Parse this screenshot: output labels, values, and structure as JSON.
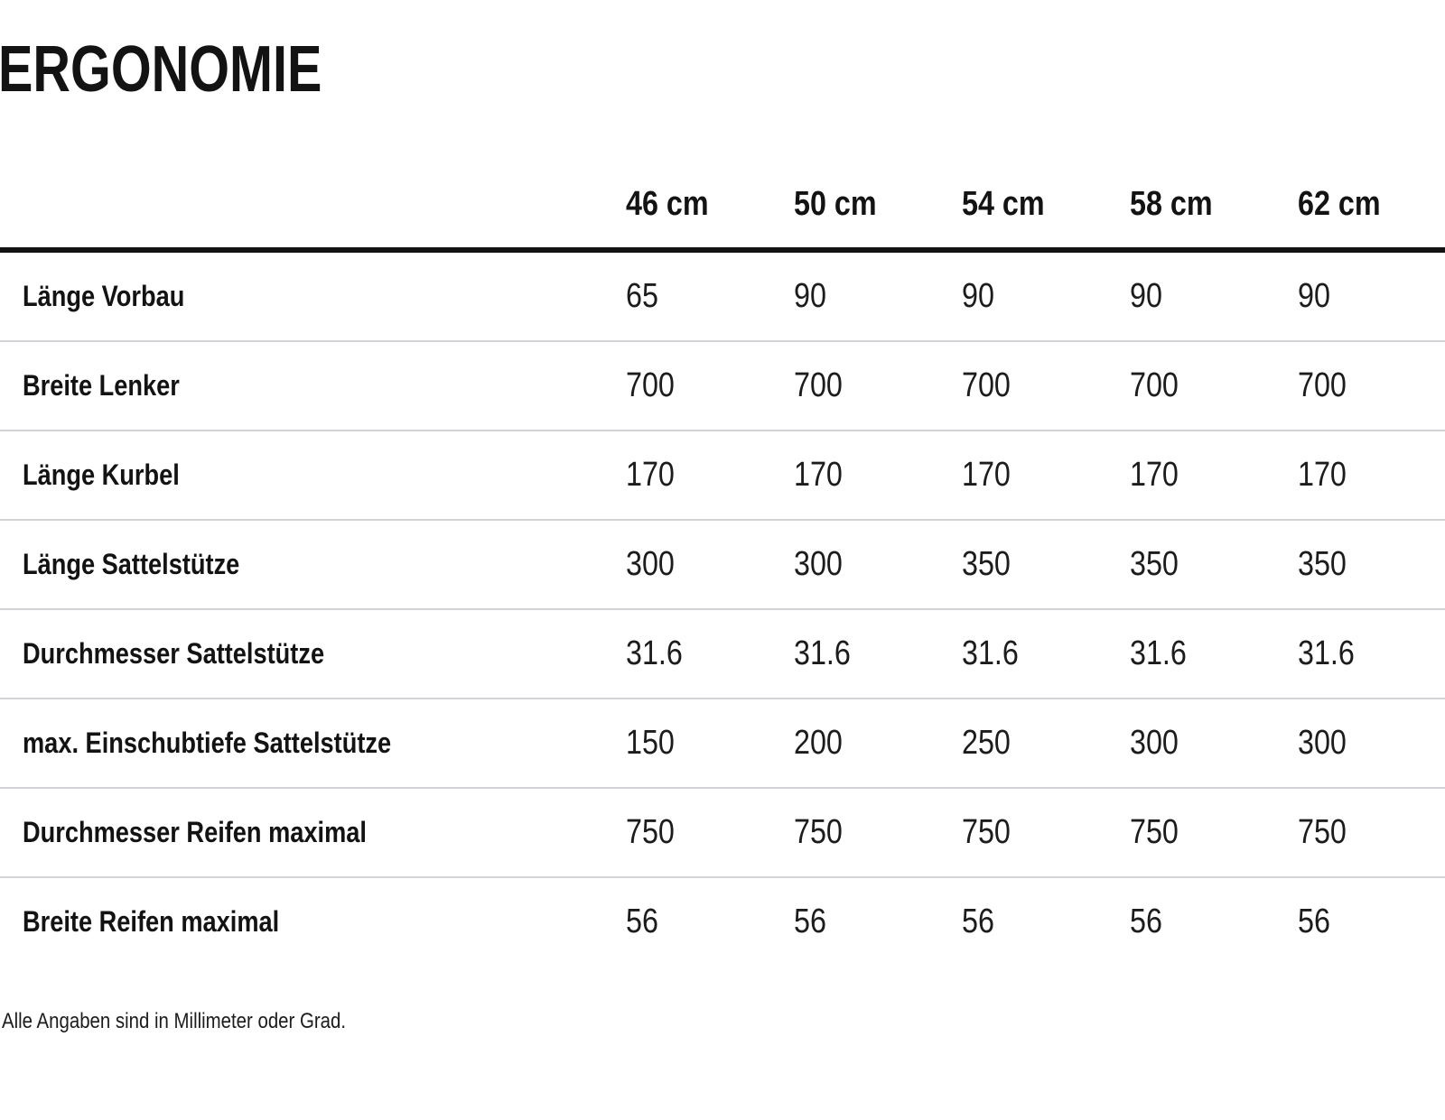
{
  "page": {
    "title": "ERGONOMIE",
    "footnote": "Alle Angaben sind in Millimeter oder Grad."
  },
  "table": {
    "columns": [
      "46 cm",
      "50 cm",
      "54 cm",
      "58 cm",
      "62 cm"
    ],
    "rows": [
      {
        "label": "Länge Vorbau",
        "values": [
          "65",
          "90",
          "90",
          "90",
          "90"
        ]
      },
      {
        "label": "Breite Lenker",
        "values": [
          "700",
          "700",
          "700",
          "700",
          "700"
        ]
      },
      {
        "label": "Länge Kurbel",
        "values": [
          "170",
          "170",
          "170",
          "170",
          "170"
        ]
      },
      {
        "label": "Länge Sattelstütze",
        "values": [
          "300",
          "300",
          "350",
          "350",
          "350"
        ]
      },
      {
        "label": "Durchmesser Sattelstütze",
        "values": [
          "31.6",
          "31.6",
          "31.6",
          "31.6",
          "31.6"
        ]
      },
      {
        "label": "max. Einschubtiefe Sattelstütze",
        "values": [
          "150",
          "200",
          "250",
          "300",
          "300"
        ]
      },
      {
        "label": "Durchmesser Reifen maximal",
        "values": [
          "750",
          "750",
          "750",
          "750",
          "750"
        ]
      },
      {
        "label": "Breite Reifen maximal",
        "values": [
          "56",
          "56",
          "56",
          "56",
          "56"
        ]
      }
    ]
  }
}
